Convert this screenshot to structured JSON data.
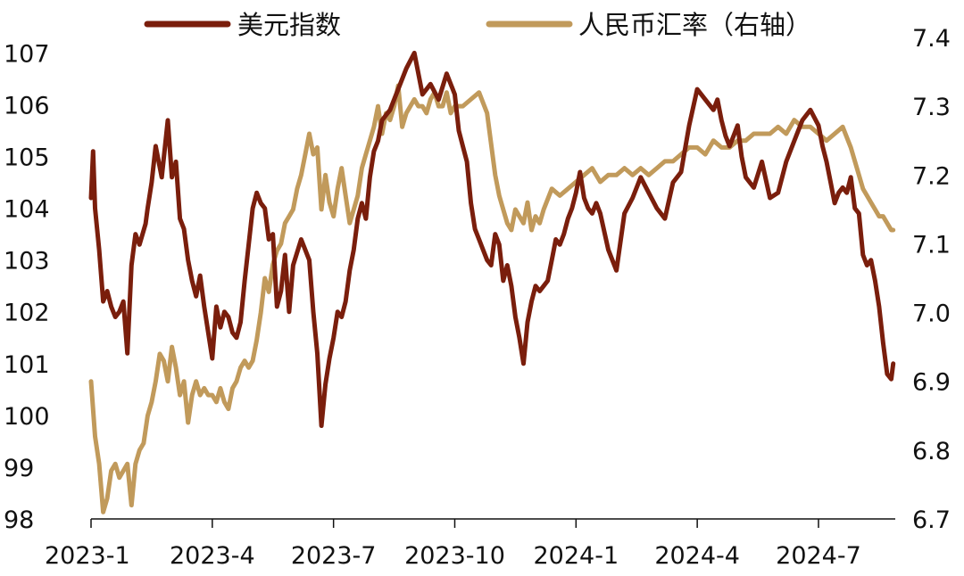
{
  "chart_data": {
    "type": "line",
    "title": "",
    "xlabel": "",
    "ylabel": "",
    "x_tick_labels": [
      "2023-1",
      "2023-4",
      "2023-7",
      "2023-10",
      "2024-1",
      "2024-4",
      "2024-7"
    ],
    "x_tick_values": [
      0,
      3,
      6,
      9,
      12,
      15,
      18
    ],
    "xlim": [
      0,
      19.9
    ],
    "ylim_left": [
      98,
      107.3
    ],
    "ylim_right": [
      6.7,
      7.4
    ],
    "left_ticks": [
      "98",
      "99",
      "100",
      "101",
      "102",
      "103",
      "104",
      "105",
      "106",
      "107"
    ],
    "right_ticks": [
      "6.7",
      "6.8",
      "6.9",
      "7.0",
      "7.1",
      "7.2",
      "7.3",
      "7.4"
    ],
    "legend_position": "top",
    "grid": false,
    "series": [
      {
        "name": "美元指数",
        "axis": "left",
        "color": "#7a1e0c",
        "x": [
          0.0,
          0.05,
          0.1,
          0.2,
          0.3,
          0.4,
          0.5,
          0.6,
          0.7,
          0.8,
          0.9,
          1.0,
          1.1,
          1.2,
          1.35,
          1.4,
          1.5,
          1.6,
          1.75,
          1.9,
          2.0,
          2.1,
          2.2,
          2.3,
          2.4,
          2.5,
          2.6,
          2.7,
          2.8,
          2.9,
          3.0,
          3.1,
          3.2,
          3.3,
          3.4,
          3.5,
          3.6,
          3.7,
          3.8,
          3.9,
          4.0,
          4.1,
          4.2,
          4.3,
          4.4,
          4.5,
          4.6,
          4.7,
          4.8,
          4.9,
          5.0,
          5.2,
          5.4,
          5.5,
          5.6,
          5.7,
          5.8,
          5.9,
          6.0,
          6.1,
          6.2,
          6.3,
          6.4,
          6.5,
          6.6,
          6.7,
          6.8,
          6.9,
          7.0,
          7.1,
          7.2,
          7.4,
          7.6,
          7.8,
          8.0,
          8.2,
          8.4,
          8.6,
          8.8,
          9.0,
          9.1,
          9.2,
          9.3,
          9.4,
          9.5,
          9.6,
          9.7,
          9.8,
          9.9,
          10.0,
          10.1,
          10.2,
          10.3,
          10.4,
          10.5,
          10.6,
          10.7,
          10.8,
          10.9,
          11.0,
          11.1,
          11.2,
          11.3,
          11.4,
          11.5,
          11.6,
          11.7,
          11.8,
          11.9,
          12.0,
          12.1,
          12.2,
          12.3,
          12.4,
          12.5,
          12.6,
          12.8,
          13.0,
          13.2,
          13.4,
          13.6,
          13.8,
          14.0,
          14.2,
          14.4,
          14.6,
          14.8,
          15.0,
          15.2,
          15.4,
          15.5,
          15.6,
          15.7,
          15.8,
          15.9,
          16.0,
          16.1,
          16.2,
          16.4,
          16.6,
          16.8,
          17.0,
          17.2,
          17.4,
          17.6,
          17.8,
          18.0,
          18.1,
          18.2,
          18.3,
          18.4,
          18.5,
          18.6,
          18.7,
          18.8,
          18.9,
          19.0,
          19.1,
          19.2,
          19.3,
          19.4,
          19.5,
          19.6,
          19.7,
          19.8,
          19.85
        ],
        "values": [
          104.2,
          105.1,
          104.0,
          103.2,
          102.2,
          102.4,
          102.1,
          101.9,
          102.0,
          102.2,
          101.2,
          102.9,
          103.5,
          103.3,
          103.7,
          104.0,
          104.5,
          105.2,
          104.6,
          105.7,
          104.6,
          104.9,
          103.8,
          103.6,
          103.0,
          102.6,
          102.3,
          102.7,
          102.1,
          101.6,
          101.1,
          102.1,
          101.7,
          102.0,
          101.9,
          101.6,
          101.5,
          101.8,
          102.6,
          103.3,
          104.0,
          104.3,
          104.1,
          104.0,
          103.4,
          103.5,
          102.1,
          102.4,
          103.1,
          102.0,
          102.9,
          103.4,
          103.0,
          102.0,
          101.2,
          99.8,
          100.6,
          101.1,
          101.5,
          102.0,
          101.9,
          102.2,
          102.8,
          103.2,
          103.8,
          104.1,
          103.8,
          104.6,
          105.1,
          105.3,
          105.7,
          105.9,
          106.3,
          106.7,
          107.0,
          106.2,
          106.4,
          106.1,
          106.6,
          106.2,
          105.5,
          105.2,
          104.9,
          104.1,
          103.6,
          103.4,
          103.2,
          103.0,
          102.9,
          103.5,
          103.3,
          102.6,
          102.9,
          102.5,
          101.9,
          101.5,
          101.0,
          101.8,
          102.2,
          102.5,
          102.4,
          102.5,
          102.6,
          103.0,
          103.4,
          103.3,
          103.5,
          103.8,
          104.0,
          104.3,
          104.7,
          104.2,
          104.0,
          103.9,
          104.1,
          103.9,
          103.2,
          102.8,
          103.9,
          104.2,
          104.6,
          104.3,
          104.0,
          103.8,
          104.5,
          104.7,
          105.6,
          106.3,
          106.1,
          105.9,
          106.1,
          105.7,
          105.4,
          105.2,
          105.4,
          105.6,
          105.0,
          104.6,
          104.4,
          104.9,
          104.2,
          104.3,
          104.9,
          105.3,
          105.7,
          105.9,
          105.6,
          105.2,
          104.9,
          104.5,
          104.1,
          104.3,
          104.4,
          104.3,
          104.6,
          104.0,
          103.9,
          103.1,
          102.9,
          103.0,
          102.6,
          102.1,
          101.4,
          100.8,
          100.7,
          101.0
        ],
        "label_color": "#7a1e0c"
      },
      {
        "name": "人民币汇率（右轴）",
        "axis": "right",
        "color": "#c19a5b",
        "x": [
          0.0,
          0.1,
          0.2,
          0.3,
          0.4,
          0.5,
          0.6,
          0.7,
          0.8,
          0.9,
          1.0,
          1.1,
          1.2,
          1.3,
          1.4,
          1.5,
          1.6,
          1.7,
          1.8,
          1.9,
          2.0,
          2.1,
          2.2,
          2.3,
          2.4,
          2.5,
          2.6,
          2.7,
          2.8,
          2.9,
          3.0,
          3.1,
          3.2,
          3.3,
          3.4,
          3.5,
          3.6,
          3.7,
          3.8,
          3.9,
          4.0,
          4.1,
          4.2,
          4.3,
          4.4,
          4.5,
          4.6,
          4.7,
          4.8,
          4.9,
          5.0,
          5.1,
          5.2,
          5.3,
          5.4,
          5.5,
          5.6,
          5.7,
          5.8,
          5.9,
          6.0,
          6.1,
          6.2,
          6.3,
          6.4,
          6.5,
          6.6,
          6.7,
          6.8,
          6.9,
          7.0,
          7.1,
          7.2,
          7.3,
          7.4,
          7.5,
          7.6,
          7.7,
          7.8,
          7.9,
          8.0,
          8.1,
          8.2,
          8.3,
          8.4,
          8.5,
          8.6,
          8.7,
          8.8,
          8.9,
          9.0,
          9.2,
          9.4,
          9.6,
          9.8,
          10.0,
          10.1,
          10.2,
          10.3,
          10.4,
          10.5,
          10.6,
          10.7,
          10.8,
          10.9,
          11.0,
          11.1,
          11.2,
          11.4,
          11.6,
          11.8,
          12.0,
          12.2,
          12.4,
          12.6,
          12.8,
          13.0,
          13.2,
          13.4,
          13.6,
          13.8,
          14.0,
          14.2,
          14.4,
          14.6,
          14.8,
          15.0,
          15.2,
          15.4,
          15.6,
          15.8,
          16.0,
          16.2,
          16.4,
          16.6,
          16.8,
          17.0,
          17.2,
          17.4,
          17.6,
          17.8,
          18.0,
          18.2,
          18.4,
          18.6,
          18.8,
          19.0,
          19.1,
          19.2,
          19.3,
          19.4,
          19.5,
          19.6,
          19.7,
          19.8,
          19.85
        ],
        "values": [
          6.9,
          6.82,
          6.78,
          6.71,
          6.73,
          6.77,
          6.78,
          6.76,
          6.77,
          6.78,
          6.72,
          6.78,
          6.8,
          6.81,
          6.85,
          6.87,
          6.9,
          6.94,
          6.93,
          6.9,
          6.95,
          6.92,
          6.88,
          6.9,
          6.84,
          6.88,
          6.9,
          6.88,
          6.89,
          6.88,
          6.88,
          6.87,
          6.89,
          6.87,
          6.86,
          6.89,
          6.9,
          6.92,
          6.93,
          6.92,
          6.93,
          6.96,
          7.0,
          7.05,
          7.03,
          7.07,
          7.09,
          7.1,
          7.13,
          7.14,
          7.15,
          7.18,
          7.2,
          7.23,
          7.26,
          7.23,
          7.24,
          7.15,
          7.2,
          7.16,
          7.14,
          7.18,
          7.21,
          7.17,
          7.13,
          7.15,
          7.17,
          7.21,
          7.23,
          7.25,
          7.27,
          7.3,
          7.26,
          7.29,
          7.28,
          7.3,
          7.33,
          7.27,
          7.29,
          7.3,
          7.31,
          7.3,
          7.3,
          7.29,
          7.31,
          7.32,
          7.3,
          7.3,
          7.32,
          7.29,
          7.3,
          7.3,
          7.31,
          7.32,
          7.29,
          7.2,
          7.17,
          7.15,
          7.13,
          7.12,
          7.15,
          7.14,
          7.13,
          7.16,
          7.12,
          7.14,
          7.13,
          7.15,
          7.18,
          7.17,
          7.18,
          7.19,
          7.2,
          7.21,
          7.19,
          7.2,
          7.2,
          7.21,
          7.2,
          7.21,
          7.2,
          7.21,
          7.22,
          7.22,
          7.23,
          7.24,
          7.24,
          7.23,
          7.25,
          7.24,
          7.24,
          7.25,
          7.25,
          7.26,
          7.26,
          7.26,
          7.27,
          7.26,
          7.28,
          7.27,
          7.27,
          7.26,
          7.25,
          7.26,
          7.27,
          7.24,
          7.2,
          7.18,
          7.17,
          7.16,
          7.15,
          7.14,
          7.14,
          7.13,
          7.12,
          7.12
        ],
        "label_color": "#c19a5b"
      }
    ]
  }
}
